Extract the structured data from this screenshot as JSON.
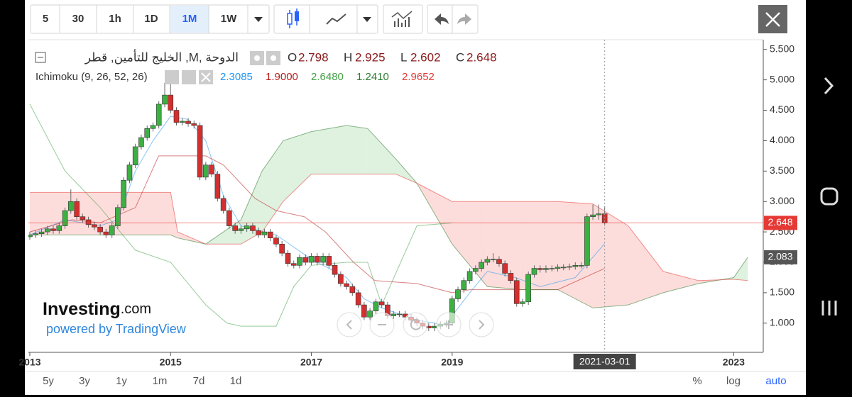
{
  "toolbar": {
    "intervals": [
      "5",
      "30",
      "1h",
      "1D",
      "1M",
      "1W"
    ]
  },
  "chart_data": {
    "type": "candlestick",
    "title": "الخليج للتأمين, قطر ,M, الدوحة",
    "ohlc_letters": [
      "O",
      "H",
      "L",
      "C"
    ],
    "up_color": "#3cb043",
    "down_color": "#d32f2f",
    "x": [
      2013,
      2013.083,
      2013.167,
      2013.25,
      2013.333,
      2013.417,
      2013.5,
      2013.583,
      2013.667,
      2013.75,
      2013.833,
      2013.917,
      2014,
      2014.083,
      2014.167,
      2014.25,
      2014.333,
      2014.417,
      2014.5,
      2014.583,
      2014.667,
      2014.75,
      2014.833,
      2014.917,
      2015,
      2015.083,
      2015.167,
      2015.25,
      2015.333,
      2015.417,
      2015.5,
      2015.583,
      2015.667,
      2015.75,
      2015.833,
      2015.917,
      2016,
      2016.083,
      2016.167,
      2016.25,
      2016.333,
      2016.417,
      2016.5,
      2016.583,
      2016.667,
      2016.75,
      2016.833,
      2016.917,
      2017,
      2017.083,
      2017.167,
      2017.25,
      2017.333,
      2017.417,
      2017.5,
      2017.583,
      2017.667,
      2017.75,
      2017.833,
      2017.917,
      2018,
      2018.083,
      2018.167,
      2018.25,
      2018.333,
      2018.417,
      2018.5,
      2018.583,
      2018.667,
      2018.75,
      2018.833,
      2018.917,
      2019,
      2019.083,
      2019.167,
      2019.25,
      2019.333,
      2019.417,
      2019.5,
      2019.583,
      2019.667,
      2019.75,
      2019.833,
      2019.917,
      2020,
      2020.083,
      2020.167,
      2020.25,
      2020.333,
      2020.417,
      2020.5,
      2020.583,
      2020.667,
      2020.75,
      2020.833,
      2020.917,
      2021,
      2021.083,
      2021.167
    ],
    "open": [
      2.42,
      2.45,
      2.47,
      2.5,
      2.55,
      2.52,
      2.6,
      2.85,
      3.0,
      2.75,
      2.7,
      2.62,
      2.58,
      2.5,
      2.45,
      2.6,
      2.9,
      3.35,
      3.6,
      3.9,
      4.05,
      4.2,
      4.25,
      4.6,
      4.75,
      4.5,
      4.3,
      4.32,
      4.28,
      4.25,
      3.4,
      3.6,
      3.45,
      3.05,
      2.85,
      2.6,
      2.52,
      2.55,
      2.6,
      2.52,
      2.45,
      2.5,
      2.4,
      2.3,
      2.15,
      1.98,
      1.95,
      2.08,
      2.0,
      2.1,
      2.0,
      2.1,
      1.95,
      1.8,
      1.65,
      1.6,
      1.5,
      1.3,
      1.1,
      1.2,
      1.35,
      1.3,
      1.12,
      1.15,
      1.15,
      1.1,
      1.05,
      1.0,
      0.95,
      0.92,
      0.95,
      0.98,
      1.0,
      1.4,
      1.55,
      1.7,
      1.85,
      1.9,
      2.0,
      2.05,
      2.05,
      1.98,
      1.82,
      1.7,
      1.32,
      1.35,
      1.8,
      1.9,
      1.88,
      1.9,
      1.9,
      1.92,
      1.92,
      1.93,
      1.95,
      1.95,
      2.75,
      2.78,
      2.798
    ],
    "high": [
      2.5,
      2.52,
      2.55,
      2.6,
      2.6,
      2.65,
      2.9,
      3.2,
      3.05,
      2.8,
      2.75,
      2.67,
      2.63,
      2.55,
      2.65,
      2.95,
      3.4,
      3.65,
      3.95,
      4.1,
      4.25,
      4.3,
      4.65,
      4.95,
      5.0,
      4.55,
      4.37,
      4.37,
      4.33,
      4.3,
      3.65,
      3.65,
      3.5,
      3.1,
      2.9,
      2.65,
      2.6,
      2.65,
      2.65,
      2.57,
      2.55,
      2.55,
      2.45,
      2.35,
      2.2,
      2.03,
      2.13,
      2.13,
      2.15,
      2.15,
      2.15,
      2.15,
      2.0,
      1.85,
      1.7,
      1.65,
      1.55,
      1.35,
      1.25,
      1.4,
      1.4,
      1.35,
      1.2,
      1.2,
      1.2,
      1.15,
      1.1,
      1.05,
      1.0,
      1.0,
      1.03,
      1.05,
      1.45,
      1.6,
      1.75,
      1.9,
      1.95,
      2.05,
      2.1,
      2.15,
      2.1,
      2.03,
      1.87,
      1.75,
      1.4,
      1.85,
      1.95,
      1.95,
      1.95,
      1.95,
      1.97,
      1.97,
      1.98,
      2.0,
      2.0,
      2.8,
      2.95,
      2.95,
      2.925
    ],
    "low": [
      2.37,
      2.4,
      2.42,
      2.45,
      2.47,
      2.47,
      2.55,
      2.8,
      2.7,
      2.65,
      2.57,
      2.53,
      2.45,
      2.4,
      2.4,
      2.55,
      2.85,
      3.3,
      3.55,
      3.85,
      4.0,
      4.15,
      4.2,
      4.55,
      4.45,
      4.25,
      4.25,
      4.23,
      4.2,
      3.35,
      3.35,
      3.4,
      3.0,
      2.8,
      2.55,
      2.47,
      2.47,
      2.5,
      2.47,
      2.4,
      2.4,
      2.35,
      2.25,
      2.1,
      1.93,
      1.9,
      1.9,
      1.95,
      1.95,
      1.95,
      1.95,
      1.9,
      1.75,
      1.6,
      1.55,
      1.45,
      1.25,
      1.05,
      1.05,
      1.15,
      1.25,
      1.07,
      1.07,
      1.1,
      1.05,
      1.0,
      0.95,
      0.9,
      0.87,
      0.87,
      0.9,
      0.93,
      0.95,
      1.35,
      1.5,
      1.65,
      1.8,
      1.85,
      1.95,
      2.0,
      1.93,
      1.77,
      1.65,
      1.27,
      1.27,
      1.3,
      1.75,
      1.83,
      1.83,
      1.85,
      1.85,
      1.87,
      1.87,
      1.88,
      1.9,
      1.9,
      2.7,
      2.7,
      2.602
    ],
    "close": [
      2.45,
      2.47,
      2.5,
      2.55,
      2.52,
      2.6,
      2.85,
      3.0,
      2.75,
      2.7,
      2.62,
      2.58,
      2.5,
      2.45,
      2.6,
      2.9,
      3.35,
      3.6,
      3.9,
      4.05,
      4.2,
      4.25,
      4.6,
      4.75,
      4.5,
      4.3,
      4.32,
      4.28,
      4.25,
      3.4,
      3.6,
      3.45,
      3.05,
      2.85,
      2.6,
      2.52,
      2.55,
      2.6,
      2.52,
      2.45,
      2.5,
      2.4,
      2.3,
      2.15,
      1.98,
      1.95,
      2.08,
      2.0,
      2.1,
      2.0,
      2.1,
      1.95,
      1.8,
      1.65,
      1.6,
      1.5,
      1.3,
      1.1,
      1.2,
      1.35,
      1.3,
      1.12,
      1.15,
      1.15,
      1.1,
      1.05,
      1.0,
      0.95,
      0.92,
      0.95,
      0.98,
      1.0,
      1.4,
      1.55,
      1.7,
      1.85,
      1.9,
      2.0,
      2.05,
      2.05,
      1.98,
      1.82,
      1.7,
      1.32,
      1.35,
      1.8,
      1.9,
      1.88,
      1.9,
      1.9,
      1.92,
      1.92,
      1.93,
      1.95,
      1.95,
      2.75,
      2.78,
      2.798,
      2.648
    ],
    "xlim": [
      2012.98,
      2023.42
    ],
    "xticks": [
      2013,
      2015,
      2017,
      2019,
      2023
    ],
    "ylim": [
      0.52,
      5.66
    ],
    "yticks": [
      {
        "value": 1,
        "label": "1.000"
      },
      {
        "value": 1.5,
        "label": "1.500"
      },
      {
        "value": 2,
        "label": "2.000"
      },
      {
        "value": 2.5,
        "label": "2.500"
      },
      {
        "value": 3,
        "label": "3.000"
      },
      {
        "value": 3.5,
        "label": "3.500"
      },
      {
        "value": 4,
        "label": "4.000"
      },
      {
        "value": 4.5,
        "label": "4.500"
      },
      {
        "value": 5,
        "label": "5.000"
      },
      {
        "value": 5.5,
        "label": "5.500"
      }
    ],
    "price_line_color": "#e53935",
    "cloud_tag_color": "#555555",
    "crosshair_label": "2021-03-01",
    "indicator": {
      "label": "Ichimoku (9, 26, 52, 26)",
      "cloud_up_color": "#4caf50",
      "cloud_down_color": "#f44336",
      "lines": [
        {
          "color": "#2196f3",
          "last": 2.3085,
          "x": [
            2013,
            2013.5,
            2014,
            2014.25,
            2014.5,
            2014.75,
            2015,
            2015.25,
            2015.5,
            2015.75,
            2016,
            2016.5,
            2017,
            2017.5,
            2017.75,
            2018,
            2018.5,
            2018.9,
            2019.25,
            2019.5,
            2019.9,
            2020.25,
            2020.75,
            2021.167
          ],
          "values": [
            2.45,
            2.7,
            2.6,
            2.7,
            3.5,
            4.0,
            4.4,
            4.35,
            4.0,
            3.1,
            2.6,
            2.45,
            2.05,
            1.75,
            1.4,
            1.25,
            1.05,
            0.97,
            1.5,
            1.85,
            1.75,
            1.6,
            1.75,
            2.3085
          ]
        },
        {
          "color": "#b71c1c",
          "last": {
            "value": 1.9,
            "label": "1.9000"
          },
          "x": [
            2013,
            2013.6,
            2014,
            2014.5,
            2014.83,
            2015.5,
            2015.75,
            2016.2,
            2016.5,
            2016.9,
            2017.2,
            2017.6,
            2017.9,
            2018.5,
            2019,
            2019.25,
            2019.5,
            2020,
            2020.5,
            2021.167
          ],
          "values": [
            2.5,
            2.7,
            2.65,
            2.9,
            3.75,
            3.75,
            3.6,
            3.05,
            2.85,
            2.75,
            2.5,
            2.0,
            1.7,
            1.65,
            1.5,
            1.55,
            1.55,
            1.55,
            1.55,
            1.9
          ]
        },
        {
          "color": "#43a047",
          "last": {
            "value": 2.648,
            "label": "2.6480"
          },
          "x": [
            2013,
            2013.5,
            2014,
            2014.5,
            2015,
            2015.5,
            2015.8,
            2016,
            2016.5,
            2016.75,
            2017,
            2017.5,
            2017.8,
            2018,
            2018.5,
            2019
          ],
          "values": [
            4.6,
            3.5,
            2.9,
            2.2,
            2.0,
            1.3,
            1.0,
            0.95,
            0.95,
            1.6,
            1.95,
            2.0,
            2.0,
            1.3,
            2.6,
            2.648
          ]
        },
        {
          "color": "#2e7d32",
          "last": {
            "value": 1.241,
            "label": "1.2410"
          },
          "x": [
            2013,
            2014,
            2015,
            2015.1,
            2015.5,
            2016,
            2016.3,
            2016.6,
            2017,
            2017.5,
            2017.8,
            2018.2,
            2018.5,
            2019,
            2019.5,
            2020,
            2020.5,
            2021,
            2021.5,
            2022,
            2022.5,
            2023,
            2023.2
          ],
          "values": [
            2.45,
            2.45,
            2.45,
            2.4,
            2.3,
            2.7,
            3.5,
            4.0,
            4.15,
            4.25,
            4.2,
            3.7,
            3.3,
            2.3,
            1.6,
            1.55,
            1.55,
            1.25,
            1.3,
            1.5,
            1.65,
            1.75,
            2.083
          ]
        },
        {
          "color": "#e53935",
          "last": 2.9652,
          "x": [
            2013,
            2014,
            2015,
            2015.1,
            2015.5,
            2016,
            2016.3,
            2016.6,
            2017,
            2017.5,
            2017.8,
            2018.2,
            2018.5,
            2019,
            2019.5,
            2020,
            2020.5,
            2021,
            2021.5,
            2022,
            2022.5,
            2023,
            2023.2
          ],
          "values": [
            3.15,
            3.15,
            3.15,
            2.5,
            2.3,
            2.3,
            2.5,
            3.0,
            3.45,
            3.45,
            3.45,
            3.45,
            3.3,
            3.0,
            3.0,
            3.0,
            3.0,
            2.96,
            2.6,
            1.85,
            1.7,
            1.72,
            1.7
          ]
        }
      ]
    }
  },
  "watermark": {
    "brand": "Investing",
    "suffix": ".com",
    "sub": "powered by TradingView"
  },
  "range_buttons": [
    "5y",
    "3y",
    "1y",
    "1m",
    "7d",
    "1d"
  ],
  "scale_buttons": [
    "%",
    "log",
    "auto"
  ]
}
